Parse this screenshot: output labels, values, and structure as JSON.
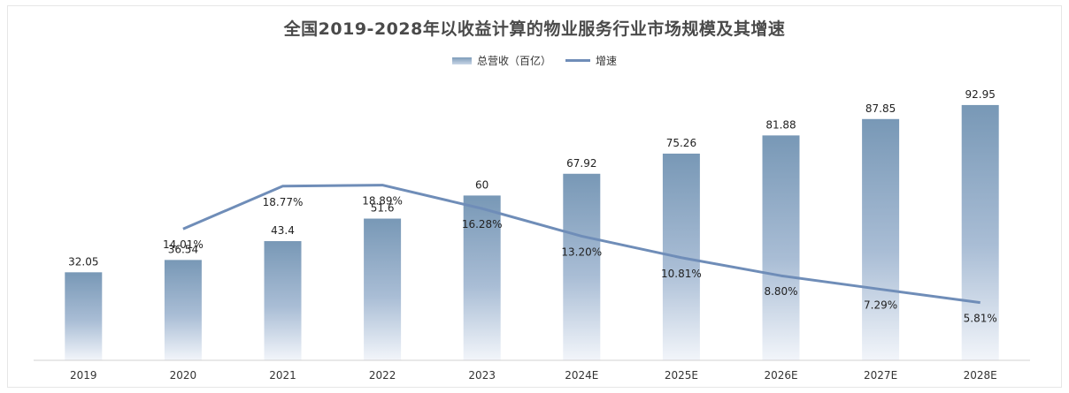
{
  "chart_data": {
    "type": "bar",
    "title": "全国2019-2028年以收益计算的物业服务行业市场规模及其增速",
    "categories": [
      "2019",
      "2020",
      "2021",
      "2022",
      "2023",
      "2024E",
      "2025E",
      "2026E",
      "2027E",
      "2028E"
    ],
    "series": [
      {
        "name": "总营收（百亿）",
        "type": "bar",
        "values": [
          32.05,
          36.54,
          43.4,
          51.6,
          60,
          67.92,
          75.26,
          81.88,
          87.85,
          92.95
        ],
        "labels": [
          "32.05",
          "36.54",
          "43.4",
          "51.6",
          "60",
          "67.92",
          "75.26",
          "81.88",
          "87.85",
          "92.95"
        ],
        "color": "#7d9cb9"
      },
      {
        "name": "增速",
        "type": "line",
        "values": [
          null,
          14.01,
          18.77,
          18.89,
          16.28,
          13.2,
          10.81,
          8.8,
          7.29,
          5.81
        ],
        "labels": [
          "",
          "14.01%",
          "18.77%",
          "18.89%",
          "16.28%",
          "13.20%",
          "10.81%",
          "8.80%",
          "7.29%",
          "5.81%"
        ],
        "color": "#6f8db8"
      }
    ],
    "ylim_bar": [
      0,
      100
    ],
    "ylim_line": [
      0,
      22
    ],
    "legend": "top",
    "grid": false
  }
}
